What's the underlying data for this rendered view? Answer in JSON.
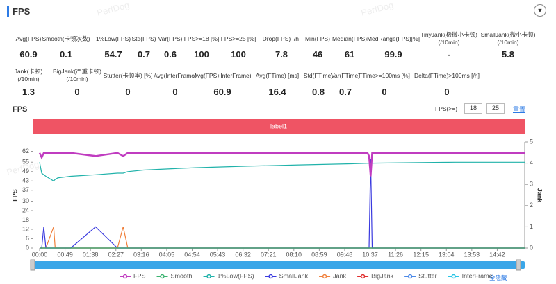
{
  "header": {
    "title": "FPS",
    "watermark": "PerfDog"
  },
  "stats": [
    [
      {
        "label": "Avg(FPS)",
        "value": 60.9
      },
      {
        "label": "Smooth(卡顿次数)",
        "value": 0.1
      },
      {
        "label": "1%Low(FPS)",
        "value": 54.7
      },
      {
        "label": "Std(FPS)",
        "value": 0.7
      },
      {
        "label": "Var(FPS)",
        "value": 0.6
      },
      {
        "label": "FPS>=18 [%]",
        "value": 100
      },
      {
        "label": "FPS>=25 [%]",
        "value": 100
      },
      {
        "label": "Drop(FPS) [/h]",
        "value": 7.8
      },
      {
        "label": "Min(FPS)",
        "value": 46
      },
      {
        "label": "Median(FPS)",
        "value": 61
      },
      {
        "label": "MedRange(FPS)[%]",
        "value": 99.9
      },
      {
        "label": "TinyJank(极微小卡顿)\n(/10min)",
        "value": "-"
      },
      {
        "label": "SmallJank(微小卡顿)\n(/10min)",
        "value": 5.8
      }
    ],
    [
      {
        "label": "Jank(卡顿)\n(/10min)",
        "value": 1.3
      },
      {
        "label": "BigJank(严重卡顿)\n(/10min)",
        "value": 0
      },
      {
        "label": "Stutter(卡顿率) [%]",
        "value": 0
      },
      {
        "label": "Avg(InterFrame)",
        "value": 0
      },
      {
        "label": "Avg(FPS+InterFrame)",
        "value": 60.9
      },
      {
        "label": "Avg(FTime) [ms]",
        "value": 16.4
      },
      {
        "label": "Std(FTime)",
        "value": 0.8
      },
      {
        "label": "Var(FTime)",
        "value": 0.7
      },
      {
        "label": "FTime>=100ms [%]",
        "value": 0
      },
      {
        "label": "Delta(FTime)>100ms [/h]",
        "value": 0
      }
    ]
  ],
  "controls": {
    "threshold_label": "FPS(>=)",
    "threshold_1": "18",
    "threshold_2": "25",
    "reset": "重置",
    "hide_all": "全隐藏"
  },
  "chart_data": {
    "type": "line",
    "title": "FPS",
    "band_label": "label1",
    "y_label": "FPS",
    "y2_label": "Jank",
    "x": [
      0,
      4,
      8,
      12,
      27,
      30,
      35,
      60,
      108,
      150,
      161,
      170,
      200,
      300,
      400,
      500,
      600,
      632,
      635,
      638,
      641,
      700,
      800,
      935
    ],
    "xlim": [
      0,
      935
    ],
    "xticks": [
      {
        "value": 0,
        "label": "00:00"
      },
      {
        "value": 49,
        "label": "00:49"
      },
      {
        "value": 98,
        "label": "01:38"
      },
      {
        "value": 147,
        "label": "02:27"
      },
      {
        "value": 196,
        "label": "03:16"
      },
      {
        "value": 245,
        "label": "04:05"
      },
      {
        "value": 294,
        "label": "04:54"
      },
      {
        "value": 343,
        "label": "05:43"
      },
      {
        "value": 392,
        "label": "06:32"
      },
      {
        "value": 441,
        "label": "07:21"
      },
      {
        "value": 490,
        "label": "08:10"
      },
      {
        "value": 539,
        "label": "08:59"
      },
      {
        "value": 588,
        "label": "09:48"
      },
      {
        "value": 637,
        "label": "10:37"
      },
      {
        "value": 686,
        "label": "11:26"
      },
      {
        "value": 735,
        "label": "12:15"
      },
      {
        "value": 784,
        "label": "13:04"
      },
      {
        "value": 833,
        "label": "13:53"
      },
      {
        "value": 882,
        "label": "14:42"
      }
    ],
    "ylim": [
      0,
      68
    ],
    "yticks": [
      0,
      6,
      12,
      18,
      24,
      30,
      37,
      43,
      49,
      55,
      62
    ],
    "y2lim": [
      0,
      5
    ],
    "y2ticks": [
      0,
      1,
      2,
      3,
      4,
      5
    ],
    "series": [
      {
        "name": "FPS",
        "color": "#c03cc0",
        "values": [
          61,
          58,
          61,
          61,
          61,
          61,
          61,
          61,
          59,
          61,
          59,
          61,
          61,
          61,
          61,
          61,
          61,
          61,
          59,
          46,
          61,
          61,
          61,
          61
        ]
      },
      {
        "name": "Smooth",
        "color": "#3cb371",
        "values": [
          0,
          0,
          0,
          0,
          0,
          0,
          0,
          0,
          0,
          0,
          0,
          0,
          0,
          0,
          0,
          0,
          0,
          0,
          0,
          0,
          0,
          0,
          0,
          0
        ]
      },
      {
        "name": "1%Low(FPS)",
        "color": "#20b2aa",
        "values": [
          55,
          48,
          47,
          46,
          43,
          44,
          45,
          46,
          47,
          48,
          48,
          49,
          50,
          51.5,
          52.5,
          53.3,
          54,
          54.3,
          54.3,
          54.3,
          54.4,
          54.6,
          55,
          55
        ]
      },
      {
        "name": "SmallJank",
        "color": "#3a3adf",
        "axis": "y2",
        "values": [
          0,
          0,
          1,
          0,
          0,
          0,
          0,
          0,
          1,
          0,
          0,
          0,
          0,
          0,
          0,
          0,
          0,
          0,
          0,
          4.2,
          0,
          0,
          0,
          0
        ]
      },
      {
        "name": "Jank",
        "color": "#f0803c",
        "axis": "y2",
        "values": [
          0,
          0,
          0,
          0,
          1,
          0,
          0,
          0,
          0,
          0,
          1,
          0,
          0,
          0,
          0,
          0,
          0,
          0,
          0,
          0,
          0,
          0,
          0,
          0
        ]
      },
      {
        "name": "BigJank",
        "color": "#e03030",
        "axis": "y2",
        "values": [
          0,
          0,
          0,
          0,
          0,
          0,
          0,
          0,
          0,
          0,
          0,
          0,
          0,
          0,
          0,
          0,
          0,
          0,
          0,
          0,
          0,
          0,
          0,
          0
        ]
      },
      {
        "name": "Stutter",
        "color": "#4d8ae8",
        "axis": "y2",
        "values": [
          0,
          0,
          0,
          0,
          0,
          0,
          0,
          0,
          0,
          0,
          0,
          0,
          0,
          0,
          0,
          0,
          0,
          0,
          0,
          0,
          0,
          0,
          0,
          0
        ]
      },
      {
        "name": "InterFrame",
        "color": "#29c5e6",
        "axis": "y2",
        "values": [
          0,
          0,
          0,
          0,
          0,
          0,
          0,
          0,
          0,
          0,
          0,
          0,
          0,
          0,
          0,
          0,
          0,
          0,
          0,
          0,
          0,
          0,
          0,
          0
        ]
      }
    ]
  }
}
